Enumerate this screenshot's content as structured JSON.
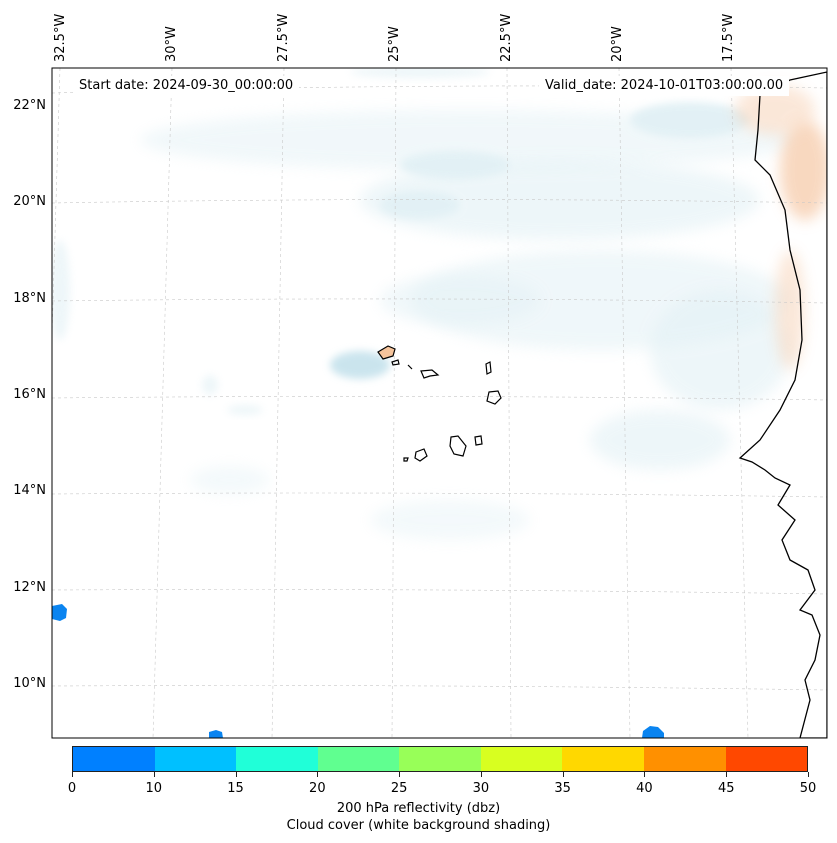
{
  "map": {
    "lon_labels": [
      "32.5°W",
      "30°W",
      "27.5°W",
      "25°W",
      "22.5°W",
      "20°W",
      "17.5°W"
    ],
    "lat_labels": [
      "22°N",
      "20°N",
      "18°N",
      "16°N",
      "14°N",
      "12°N",
      "10°N"
    ],
    "start_date": "Start date: 2024-09-30_00:00:00",
    "valid_date": "Valid_date: 2024-10-01T03:00:00.00"
  },
  "colorbar": {
    "colors": [
      "#0080ff",
      "#00c0ff",
      "#20ffd8",
      "#60ff90",
      "#98ff58",
      "#d8ff20",
      "#ffd800",
      "#ff9000",
      "#ff4800"
    ],
    "ticks": [
      "0",
      "10",
      "15",
      "20",
      "25",
      "30",
      "35",
      "40",
      "45",
      "50"
    ],
    "title": "200 hPa reflectivity (dbz)",
    "subtitle": "Cloud cover (white background shading)"
  }
}
